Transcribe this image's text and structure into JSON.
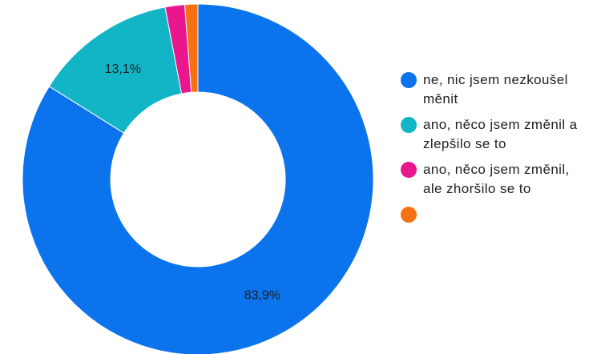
{
  "chart_data": {
    "type": "pie",
    "donut": true,
    "slices": [
      {
        "label": "ne, nic jsem nezkoušel měnit",
        "value": 83.9,
        "value_label": "83,9%",
        "color": "#0b73ec"
      },
      {
        "label": "ano, něco jsem změnil a zlepšilo se to",
        "value": 13.1,
        "value_label": "13,1%",
        "color": "#12b5c6"
      },
      {
        "label": "ano, něco jsem změnil, ale zhoršilo se to",
        "value": 1.8,
        "value_label": "",
        "color": "#ea168d"
      },
      {
        "label": "",
        "value": 1.2,
        "value_label": "",
        "color": "#f57214"
      }
    ],
    "legend_position": "right"
  }
}
